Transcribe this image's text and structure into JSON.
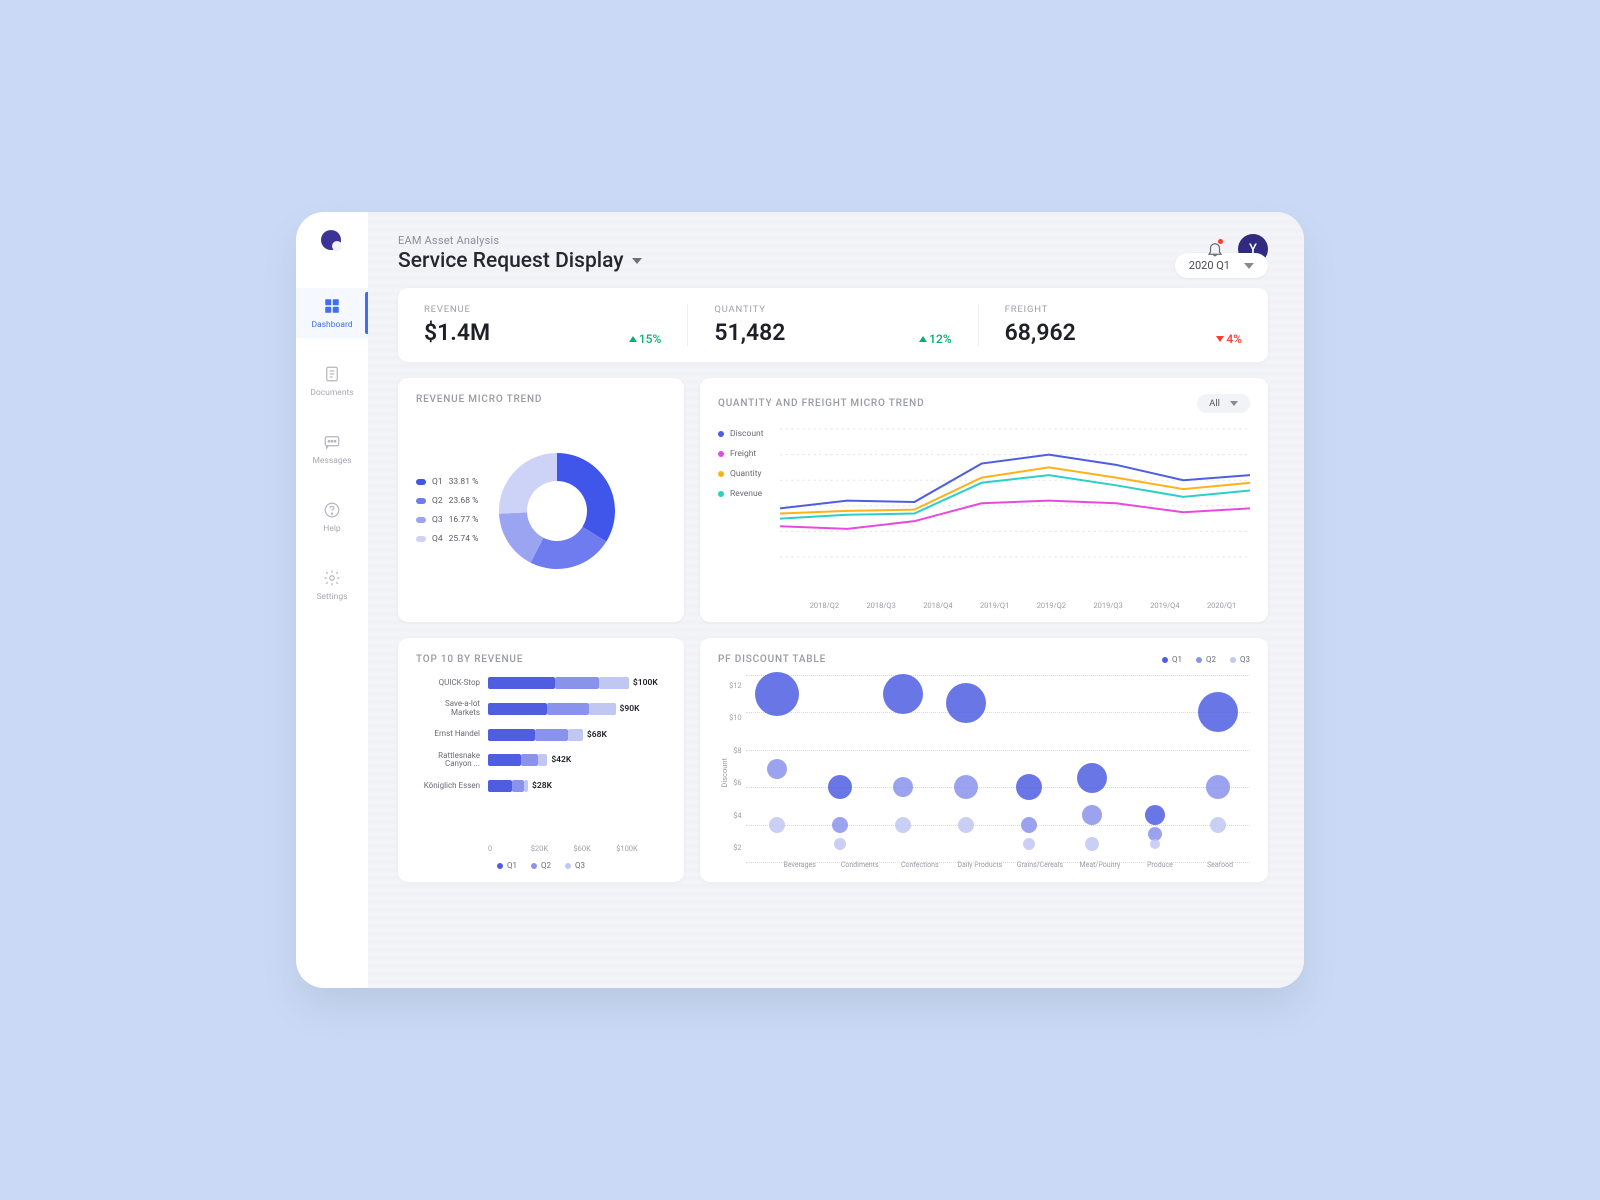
{
  "colors": {
    "page_bg": "#cadaf6",
    "shell_bg": "#f2f3f7",
    "card_bg": "#ffffff",
    "accent": "#3e6ff0",
    "accent_dark": "#312a7f",
    "text": "#26262e",
    "text_muted": "#8d8d99",
    "text_light": "#a0a0aa",
    "up": "#07b06e",
    "down": "#ff3b30",
    "grid": "#d8d8e0",
    "series_blue": "#4f5ee0",
    "series_blue2": "#8a93ec",
    "series_blue3": "#c1c7f3",
    "donut_q1": "#4055ea",
    "donut_q2": "#6e7cef",
    "donut_q3": "#9aa4f1",
    "donut_q4": "#cdd3f7",
    "line_discount": "#4f5ee0",
    "line_freight": "#e64bdf",
    "line_quantity": "#ffb21a",
    "line_revenue": "#2ad0c8"
  },
  "sidebar": {
    "items": [
      {
        "label": "Dashboard",
        "icon": "grid",
        "active": true
      },
      {
        "label": "Documents",
        "icon": "doc",
        "active": false
      },
      {
        "label": "Messages",
        "icon": "msg",
        "active": false
      },
      {
        "label": "Help",
        "icon": "help",
        "active": false
      },
      {
        "label": "Settings",
        "icon": "gear",
        "active": false
      }
    ]
  },
  "header": {
    "supertitle": "EAM Asset Analysis",
    "title": "Service Request Display",
    "avatar_initial": "Y",
    "period": "2020 Q1"
  },
  "kpis": [
    {
      "label": "REVENUE",
      "value": "$1.4M",
      "delta": "15%",
      "dir": "up"
    },
    {
      "label": "QUANTITY",
      "value": "51,482",
      "delta": "12%",
      "dir": "up"
    },
    {
      "label": "FREIGHT",
      "value": "68,962",
      "delta": "4%",
      "dir": "down"
    }
  ],
  "donut": {
    "title": "REVENUE MICRO TREND",
    "slices": [
      {
        "label": "Q1",
        "pct": 33.81,
        "color": "#4055ea"
      },
      {
        "label": "Q2",
        "pct": 23.68,
        "color": "#6e7cef"
      },
      {
        "label": "Q3",
        "pct": 16.77,
        "color": "#9aa4f1"
      },
      {
        "label": "Q4",
        "pct": 25.74,
        "color": "#cdd3f7"
      }
    ],
    "outer_r": 58,
    "inner_r": 30
  },
  "line": {
    "title": "QUANTITY AND FREIGHT MICRO TREND",
    "filter": "All",
    "x": [
      "2018/Q2",
      "2018/Q3",
      "2018/Q4",
      "2019/Q1",
      "2019/Q2",
      "2019/Q3",
      "2019/Q4",
      "2020/Q1"
    ],
    "ylim": [
      0,
      100
    ],
    "series": [
      {
        "name": "Discount",
        "color": "#4f5ee0",
        "y": [
          38,
          44,
          43,
          73,
          80,
          72,
          60,
          64
        ]
      },
      {
        "name": "Freight",
        "color": "#e64bdf",
        "y": [
          24,
          22,
          28,
          42,
          44,
          42,
          35,
          38
        ]
      },
      {
        "name": "Quantity",
        "color": "#ffb21a",
        "y": [
          34,
          36,
          37,
          62,
          70,
          62,
          53,
          58
        ]
      },
      {
        "name": "Revenue",
        "color": "#2ad0c8",
        "y": [
          30,
          33,
          34,
          58,
          64,
          56,
          47,
          52
        ]
      }
    ]
  },
  "top10": {
    "title": "TOP 10 BY REVENUE",
    "xmax": 120,
    "xticks": [
      "0",
      "$20K",
      "$60K",
      "$100K"
    ],
    "legend": [
      "Q1",
      "Q2",
      "Q3"
    ],
    "legend_colors": [
      "#4f5ee0",
      "#8a93ec",
      "#c1c7f3"
    ],
    "rows": [
      {
        "name": "QUICK-Stop",
        "segs": [
          45,
          30,
          20
        ],
        "value": "$100K"
      },
      {
        "name": "Save-a-lot Markets",
        "segs": [
          40,
          28,
          18
        ],
        "value": "$90K"
      },
      {
        "name": "Ernst Handel",
        "segs": [
          32,
          22,
          10
        ],
        "value": "$68K"
      },
      {
        "name": "Rattlesnake Canyon ...",
        "segs": [
          22,
          12,
          6
        ],
        "value": "$42K"
      },
      {
        "name": "Königlich Essen",
        "segs": [
          16,
          8,
          3
        ],
        "value": "$28K"
      }
    ]
  },
  "bubble": {
    "title": "PF DISCOUNT TABLE",
    "legend": [
      "Q1",
      "Q2",
      "Q3"
    ],
    "legend_colors": [
      "#4f5ee0",
      "#8a93ec",
      "#c1c7f3"
    ],
    "ylabel": "Discount",
    "yticks": [
      "$12",
      "$10",
      "$8",
      "$6",
      "$4",
      "$2"
    ],
    "ymin": 2,
    "ymax": 12,
    "categories": [
      "Beverages",
      "Condiments",
      "Confections",
      "Daily Products",
      "Grains/Cereals",
      "Meat/Poultry",
      "Produce",
      "Seafood"
    ],
    "points": [
      {
        "cat": 0,
        "y": 11,
        "r": 22,
        "c": "#4f5ee0"
      },
      {
        "cat": 0,
        "y": 7,
        "r": 10,
        "c": "#8a93ec"
      },
      {
        "cat": 0,
        "y": 4,
        "r": 8,
        "c": "#c1c7f3"
      },
      {
        "cat": 1,
        "y": 6,
        "r": 12,
        "c": "#4f5ee0"
      },
      {
        "cat": 1,
        "y": 4,
        "r": 8,
        "c": "#8a93ec"
      },
      {
        "cat": 1,
        "y": 3,
        "r": 6,
        "c": "#c1c7f3"
      },
      {
        "cat": 2,
        "y": 11,
        "r": 20,
        "c": "#4f5ee0"
      },
      {
        "cat": 2,
        "y": 6,
        "r": 10,
        "c": "#8a93ec"
      },
      {
        "cat": 2,
        "y": 4,
        "r": 8,
        "c": "#c1c7f3"
      },
      {
        "cat": 3,
        "y": 10.5,
        "r": 20,
        "c": "#4f5ee0"
      },
      {
        "cat": 3,
        "y": 6,
        "r": 12,
        "c": "#8a93ec"
      },
      {
        "cat": 3,
        "y": 4,
        "r": 8,
        "c": "#c1c7f3"
      },
      {
        "cat": 4,
        "y": 6,
        "r": 13,
        "c": "#4f5ee0"
      },
      {
        "cat": 4,
        "y": 4,
        "r": 8,
        "c": "#8a93ec"
      },
      {
        "cat": 4,
        "y": 3,
        "r": 6,
        "c": "#c1c7f3"
      },
      {
        "cat": 5,
        "y": 6.5,
        "r": 15,
        "c": "#4f5ee0"
      },
      {
        "cat": 5,
        "y": 4.5,
        "r": 10,
        "c": "#8a93ec"
      },
      {
        "cat": 5,
        "y": 3,
        "r": 7,
        "c": "#c1c7f3"
      },
      {
        "cat": 6,
        "y": 4.5,
        "r": 10,
        "c": "#4f5ee0"
      },
      {
        "cat": 6,
        "y": 3.5,
        "r": 7,
        "c": "#8a93ec"
      },
      {
        "cat": 6,
        "y": 3,
        "r": 5,
        "c": "#c1c7f3"
      },
      {
        "cat": 7,
        "y": 10,
        "r": 20,
        "c": "#4f5ee0"
      },
      {
        "cat": 7,
        "y": 6,
        "r": 12,
        "c": "#8a93ec"
      },
      {
        "cat": 7,
        "y": 4,
        "r": 8,
        "c": "#c1c7f3"
      }
    ]
  }
}
